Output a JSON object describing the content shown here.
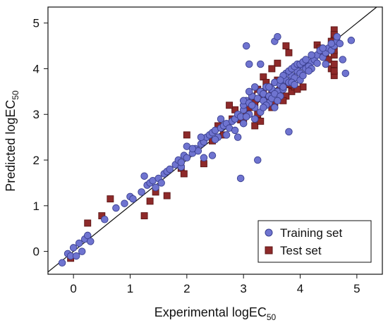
{
  "chart_data": {
    "type": "scatter",
    "xlabel": "Experimental logEC",
    "xlabel_sub": "50",
    "ylabel": "Predicted logEC",
    "ylabel_sub": "50",
    "xlim": [
      -0.45,
      5.45
    ],
    "ylim": [
      -0.5,
      5.35
    ],
    "x_ticks": [
      0,
      1,
      2,
      3,
      4,
      5
    ],
    "y_ticks": [
      0,
      1,
      2,
      3,
      4,
      5
    ],
    "grid": false,
    "legend_position": "bottom-right",
    "identity_line": true,
    "series": [
      {
        "name": "Training set",
        "marker": "circle",
        "color": "#6F74D0",
        "edge_color": "#3A3F8F",
        "points": [
          [
            -0.2,
            -0.25
          ],
          [
            -0.1,
            -0.05
          ],
          [
            0.0,
            0.08
          ],
          [
            0.1,
            0.18
          ],
          [
            0.15,
            0.0
          ],
          [
            0.2,
            0.27
          ],
          [
            0.25,
            0.35
          ],
          [
            0.3,
            0.22
          ],
          [
            -0.05,
            -0.1
          ],
          [
            0.05,
            -0.1
          ],
          [
            0.55,
            0.7
          ],
          [
            0.75,
            0.95
          ],
          [
            0.9,
            1.05
          ],
          [
            1.0,
            1.2
          ],
          [
            1.05,
            1.15
          ],
          [
            1.2,
            1.3
          ],
          [
            1.25,
            1.65
          ],
          [
            1.3,
            1.45
          ],
          [
            1.35,
            1.5
          ],
          [
            1.4,
            1.55
          ],
          [
            1.45,
            1.4
          ],
          [
            1.5,
            1.6
          ],
          [
            1.55,
            1.5
          ],
          [
            1.6,
            1.7
          ],
          [
            1.65,
            1.75
          ],
          [
            1.7,
            1.8
          ],
          [
            1.8,
            1.9
          ],
          [
            1.85,
            2.0
          ],
          [
            1.9,
            1.85
          ],
          [
            1.95,
            2.1
          ],
          [
            2.0,
            2.05
          ],
          [
            2.0,
            2.3
          ],
          [
            2.1,
            2.15
          ],
          [
            2.15,
            2.25
          ],
          [
            2.2,
            2.2
          ],
          [
            2.25,
            2.35
          ],
          [
            2.3,
            2.4
          ],
          [
            2.35,
            2.5
          ],
          [
            2.4,
            2.55
          ],
          [
            2.45,
            2.6
          ],
          [
            2.5,
            2.65
          ],
          [
            2.55,
            2.5
          ],
          [
            2.6,
            2.7
          ],
          [
            2.65,
            2.75
          ],
          [
            2.7,
            2.8
          ],
          [
            2.75,
            2.7
          ],
          [
            2.8,
            2.85
          ],
          [
            2.85,
            2.9
          ],
          [
            2.9,
            3.0
          ],
          [
            2.95,
            2.95
          ],
          [
            2.5,
            2.45
          ],
          [
            2.6,
            2.9
          ],
          [
            2.7,
            2.55
          ],
          [
            2.45,
            2.1
          ],
          [
            2.9,
            2.5
          ],
          [
            2.95,
            1.6
          ],
          [
            2.3,
            2.05
          ],
          [
            1.9,
            1.95
          ],
          [
            2.1,
            2.25
          ],
          [
            2.25,
            2.5
          ],
          [
            3.0,
            3.1
          ],
          [
            3.0,
            3.2
          ],
          [
            3.05,
            3.3
          ],
          [
            3.1,
            3.0
          ],
          [
            3.15,
            3.4
          ],
          [
            3.2,
            3.15
          ],
          [
            3.25,
            3.35
          ],
          [
            3.3,
            3.5
          ],
          [
            3.35,
            3.45
          ],
          [
            3.4,
            3.6
          ],
          [
            3.45,
            3.25
          ],
          [
            3.5,
            3.55
          ],
          [
            3.55,
            3.7
          ],
          [
            3.6,
            3.5
          ],
          [
            3.65,
            3.65
          ],
          [
            3.7,
            3.55
          ],
          [
            3.75,
            3.75
          ],
          [
            3.8,
            3.7
          ],
          [
            3.85,
            3.85
          ],
          [
            3.9,
            3.8
          ],
          [
            3.95,
            3.95
          ],
          [
            4.0,
            3.9
          ],
          [
            4.05,
            4.05
          ],
          [
            4.1,
            4.0
          ],
          [
            4.15,
            4.1
          ],
          [
            4.2,
            4.15
          ],
          [
            4.25,
            4.2
          ],
          [
            4.3,
            4.3
          ],
          [
            4.35,
            4.4
          ],
          [
            4.4,
            4.25
          ],
          [
            4.45,
            4.35
          ],
          [
            4.5,
            4.45
          ],
          [
            4.55,
            4.4
          ],
          [
            4.6,
            4.5
          ],
          [
            4.65,
            4.6
          ],
          [
            4.7,
            4.55
          ],
          [
            4.8,
            3.9
          ],
          [
            4.9,
            4.62
          ],
          [
            4.4,
            4.45
          ],
          [
            4.2,
            4.3
          ],
          [
            3.05,
            4.5
          ],
          [
            3.1,
            4.1
          ],
          [
            3.2,
            3.6
          ],
          [
            3.3,
            4.1
          ],
          [
            3.55,
            4.6
          ],
          [
            3.6,
            4.7
          ],
          [
            3.8,
            2.62
          ],
          [
            3.25,
            2.0
          ],
          [
            3.0,
            3.3
          ],
          [
            3.1,
            3.25
          ],
          [
            3.15,
            3.2
          ],
          [
            3.35,
            3.3
          ],
          [
            3.45,
            3.4
          ],
          [
            3.5,
            3.35
          ],
          [
            3.55,
            3.45
          ],
          [
            3.65,
            3.4
          ],
          [
            3.7,
            3.6
          ],
          [
            3.75,
            3.9
          ],
          [
            3.8,
            3.95
          ],
          [
            3.85,
            4.0
          ],
          [
            3.9,
            4.05
          ],
          [
            3.95,
            4.1
          ],
          [
            4.0,
            4.1
          ],
          [
            4.05,
            4.15
          ],
          [
            4.1,
            4.2
          ],
          [
            4.15,
            4.05
          ],
          [
            4.2,
            4.0
          ],
          [
            3.3,
            3.05
          ],
          [
            3.4,
            3.2
          ],
          [
            3.6,
            3.3
          ],
          [
            3.7,
            3.85
          ],
          [
            3.85,
            3.7
          ],
          [
            4.0,
            3.75
          ],
          [
            2.85,
            2.65
          ],
          [
            3.05,
            2.95
          ],
          [
            3.2,
            2.9
          ],
          [
            3.35,
            3.15
          ],
          [
            3.45,
            3.6
          ],
          [
            3.55,
            3.15
          ],
          [
            3.65,
            3.75
          ],
          [
            4.3,
            4.12
          ],
          [
            4.45,
            4.1
          ],
          [
            4.55,
            4.55
          ],
          [
            4.65,
            4.7
          ],
          [
            4.75,
            4.2
          ],
          [
            3.9,
            3.65
          ],
          [
            4.05,
            3.85
          ],
          [
            4.15,
            3.95
          ],
          [
            3.0,
            2.8
          ],
          [
            3.1,
            3.5
          ]
        ]
      },
      {
        "name": "Test set",
        "marker": "square",
        "color": "#8E2A2A",
        "edge_color": "#5C1515",
        "points": [
          [
            -0.05,
            -0.15
          ],
          [
            0.25,
            0.62
          ],
          [
            0.5,
            0.78
          ],
          [
            0.65,
            1.15
          ],
          [
            1.25,
            0.78
          ],
          [
            1.35,
            1.1
          ],
          [
            1.45,
            1.3
          ],
          [
            1.65,
            1.22
          ],
          [
            1.9,
            1.82
          ],
          [
            2.0,
            2.55
          ],
          [
            1.95,
            1.7
          ],
          [
            2.3,
            1.92
          ],
          [
            2.45,
            2.42
          ],
          [
            2.55,
            2.75
          ],
          [
            2.65,
            2.55
          ],
          [
            2.85,
            3.1
          ],
          [
            2.95,
            2.88
          ],
          [
            2.8,
            2.9
          ],
          [
            2.75,
            3.2
          ],
          [
            3.0,
            2.85
          ],
          [
            3.05,
            3.05
          ],
          [
            3.1,
            3.15
          ],
          [
            3.15,
            3.4
          ],
          [
            3.2,
            3.25
          ],
          [
            3.25,
            3.0
          ],
          [
            3.3,
            3.35
          ],
          [
            3.35,
            3.5
          ],
          [
            3.4,
            3.3
          ],
          [
            3.45,
            3.6
          ],
          [
            3.5,
            3.45
          ],
          [
            3.55,
            3.25
          ],
          [
            3.6,
            3.75
          ],
          [
            3.65,
            3.55
          ],
          [
            3.7,
            3.6
          ],
          [
            3.75,
            3.4
          ],
          [
            3.8,
            3.65
          ],
          [
            3.85,
            3.5
          ],
          [
            3.9,
            3.6
          ],
          [
            3.6,
            4.12
          ],
          [
            3.75,
            4.5
          ],
          [
            3.8,
            4.35
          ],
          [
            3.5,
            4.0
          ],
          [
            3.35,
            3.82
          ],
          [
            3.4,
            3.7
          ],
          [
            3.2,
            2.75
          ],
          [
            3.3,
            2.85
          ],
          [
            3.5,
            3.15
          ],
          [
            3.7,
            3.3
          ],
          [
            3.85,
            3.65
          ],
          [
            4.05,
            3.6
          ],
          [
            4.3,
            4.52
          ],
          [
            4.35,
            4.45
          ],
          [
            4.4,
            4.3
          ],
          [
            4.5,
            4.2
          ],
          [
            4.55,
            4.0
          ],
          [
            4.6,
            3.85
          ],
          [
            4.6,
            4.7
          ],
          [
            4.6,
            4.85
          ],
          [
            4.6,
            4.55
          ],
          [
            4.6,
            4.3
          ],
          [
            4.6,
            4.1
          ],
          [
            4.6,
            3.95
          ],
          [
            4.6,
            4.4
          ],
          [
            4.6,
            4.75
          ],
          [
            4.6,
            4.62
          ],
          [
            4.55,
            4.6
          ],
          [
            4.45,
            4.35
          ],
          [
            3.25,
            3.55
          ],
          [
            3.45,
            3.4
          ],
          [
            3.95,
            3.55
          ]
        ]
      }
    ]
  }
}
